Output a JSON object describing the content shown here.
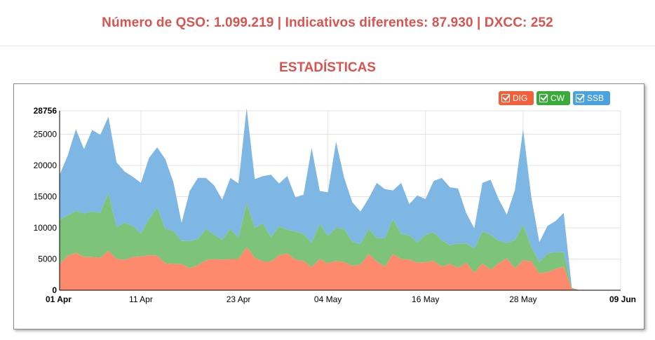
{
  "header": {
    "summary": "Número de QSO: 1.099.219 | Indicativos diferentes: 87.930 | DXCC: 252",
    "section_title": "ESTADÍSTICAS"
  },
  "legend": [
    {
      "label": "DIG",
      "color": "#f0603a",
      "checked": true
    },
    {
      "label": "CW",
      "color": "#3aaa3a",
      "checked": true
    },
    {
      "label": "SSB",
      "color": "#4aa3df",
      "checked": true
    }
  ],
  "chart_data": {
    "type": "area",
    "stacked": true,
    "x_start": "2023-04-01",
    "x_tick_labels": [
      "01 Apr",
      "11 Apr",
      "23 Apr",
      "04 May",
      "16 May",
      "28 May",
      "09 Jun"
    ],
    "x_tick_dates": [
      "2023-04-01",
      "2023-04-11",
      "2023-04-23",
      "2023-05-04",
      "2023-05-16",
      "2023-05-28",
      "2023-06-09"
    ],
    "ylim": [
      0,
      28756
    ],
    "y_ticks": [
      0,
      5000,
      10000,
      15000,
      20000,
      25000,
      28756
    ],
    "grid": true,
    "legend_position": "top-right",
    "series": [
      {
        "name": "DIG",
        "color": "#fd8a6c",
        "values": [
          4200,
          5500,
          6000,
          5300,
          5300,
          5200,
          6300,
          5000,
          4900,
          5300,
          5400,
          5600,
          5500,
          4300,
          4200,
          4200,
          3500,
          4000,
          4800,
          5000,
          4900,
          5000,
          5000,
          6900,
          5200,
          4600,
          4600,
          5600,
          5900,
          4900,
          4700,
          3700,
          5000,
          4300,
          4700,
          4500,
          3900,
          4100,
          5800,
          4600,
          3800,
          5800,
          5000,
          4900,
          4400,
          4500,
          4700,
          3800,
          4200,
          3600,
          4400,
          2800,
          4300,
          3300,
          4300,
          5100,
          3500,
          4800,
          4600,
          2700,
          2900,
          3400,
          3800,
          200,
          0,
          0,
          0,
          0,
          0,
          0
        ]
      },
      {
        "name": "CW",
        "color": "#7dc47a",
        "values": [
          7100,
          6500,
          6700,
          7000,
          7300,
          7200,
          9300,
          5100,
          5900,
          5000,
          3700,
          5800,
          7800,
          5500,
          5300,
          3700,
          4400,
          4200,
          5000,
          3900,
          3200,
          4800,
          3400,
          7100,
          4800,
          6100,
          3900,
          4600,
          3800,
          4500,
          4300,
          3900,
          5600,
          4400,
          5300,
          5300,
          3900,
          3300,
          4000,
          3800,
          4500,
          5600,
          4000,
          3900,
          3200,
          4400,
          4600,
          4200,
          3000,
          3900,
          3100,
          3900,
          5100,
          5600,
          3600,
          2500,
          4500,
          5700,
          2300,
          1800,
          3000,
          2700,
          2300,
          100,
          0,
          0,
          0,
          0,
          0,
          0
        ]
      },
      {
        "name": "SSB",
        "color": "#7eb7e4",
        "values": [
          7200,
          9600,
          13100,
          10300,
          13100,
          12500,
          12200,
          10400,
          8200,
          7900,
          8100,
          9800,
          9600,
          11200,
          7800,
          2900,
          8000,
          9800,
          8200,
          7900,
          6400,
          8200,
          8700,
          15200,
          7800,
          7600,
          10000,
          6900,
          8600,
          5500,
          6300,
          15200,
          5300,
          7000,
          13800,
          8200,
          6300,
          5200,
          4900,
          8800,
          7900,
          4600,
          8200,
          5000,
          7600,
          5700,
          8200,
          10000,
          9300,
          8800,
          4900,
          3200,
          7800,
          8800,
          6700,
          4500,
          8100,
          15300,
          8100,
          3200,
          4400,
          5000,
          6300,
          100,
          0,
          0,
          0,
          0,
          0,
          0
        ]
      }
    ]
  }
}
